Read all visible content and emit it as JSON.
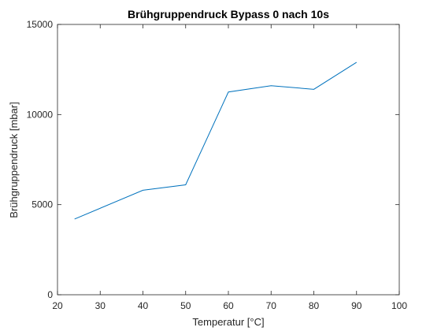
{
  "chart_data": {
    "type": "line",
    "title": "Brühgruppendruck Bypass 0 nach 10s",
    "xlabel": "Temperatur [°C]",
    "ylabel": "Brühgruppendruck [mbar]",
    "xlim": [
      20,
      100
    ],
    "ylim": [
      0,
      15000
    ],
    "xticks": [
      20,
      30,
      40,
      50,
      60,
      70,
      80,
      90,
      100
    ],
    "yticks": [
      0,
      5000,
      10000,
      15000
    ],
    "grid": false,
    "legend": "none",
    "series": [
      {
        "color": "#0072bd",
        "x": [
          24,
          40,
          50,
          60,
          70,
          80,
          90
        ],
        "y": [
          4200,
          5800,
          6100,
          11250,
          11600,
          11400,
          12900
        ]
      }
    ]
  }
}
